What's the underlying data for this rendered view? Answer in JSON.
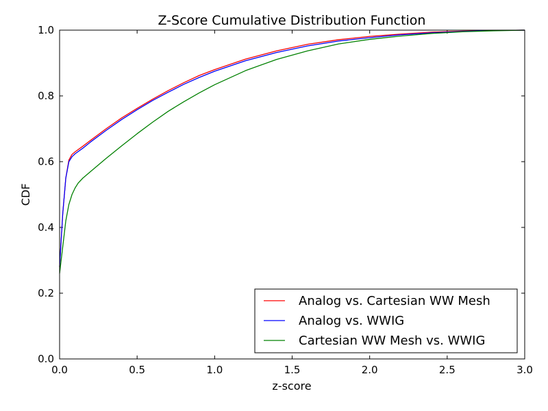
{
  "chart_data": {
    "type": "line",
    "title": "Z-Score Cumulative Distribution Function",
    "xlabel": "z-score",
    "ylabel": "CDF",
    "xlim": [
      0.0,
      3.0
    ],
    "ylim": [
      0.0,
      1.0
    ],
    "xticks": [
      "0.0",
      "0.5",
      "1.0",
      "1.5",
      "2.0",
      "2.5",
      "3.0"
    ],
    "yticks": [
      "0.0",
      "0.2",
      "0.4",
      "0.6",
      "0.8",
      "1.0"
    ],
    "grid": false,
    "legend_position": "lower-right",
    "series": [
      {
        "name": "Analog vs. Cartesian WW Mesh",
        "color": "#ff0000",
        "x": [
          0.0,
          0.02,
          0.04,
          0.06,
          0.08,
          0.1,
          0.15,
          0.2,
          0.3,
          0.4,
          0.5,
          0.6,
          0.7,
          0.8,
          0.9,
          1.0,
          1.2,
          1.4,
          1.6,
          1.8,
          2.0,
          2.2,
          2.4,
          2.6,
          2.8,
          3.0
        ],
        "y": [
          0.28,
          0.44,
          0.55,
          0.605,
          0.622,
          0.63,
          0.647,
          0.665,
          0.7,
          0.733,
          0.762,
          0.79,
          0.816,
          0.84,
          0.862,
          0.88,
          0.912,
          0.937,
          0.957,
          0.971,
          0.981,
          0.988,
          0.994,
          0.997,
          0.999,
          1.0
        ]
      },
      {
        "name": "Analog vs. WWIG",
        "color": "#0000ff",
        "x": [
          0.0,
          0.02,
          0.04,
          0.06,
          0.08,
          0.1,
          0.15,
          0.2,
          0.3,
          0.4,
          0.5,
          0.6,
          0.7,
          0.8,
          0.9,
          1.0,
          1.2,
          1.4,
          1.6,
          1.8,
          2.0,
          2.2,
          2.4,
          2.6,
          2.8,
          3.0
        ],
        "y": [
          0.28,
          0.44,
          0.55,
          0.6,
          0.615,
          0.624,
          0.641,
          0.66,
          0.695,
          0.728,
          0.758,
          0.786,
          0.811,
          0.835,
          0.856,
          0.875,
          0.907,
          0.932,
          0.952,
          0.967,
          0.977,
          0.986,
          0.992,
          0.996,
          0.999,
          1.0
        ]
      },
      {
        "name": "Cartesian WW Mesh vs. WWIG",
        "color": "#008000",
        "x": [
          0.0,
          0.02,
          0.04,
          0.06,
          0.08,
          0.1,
          0.12,
          0.15,
          0.2,
          0.3,
          0.4,
          0.5,
          0.6,
          0.7,
          0.8,
          0.9,
          1.0,
          1.2,
          1.4,
          1.6,
          1.8,
          2.0,
          2.2,
          2.4,
          2.6,
          2.8,
          3.0
        ],
        "y": [
          0.26,
          0.34,
          0.42,
          0.47,
          0.5,
          0.52,
          0.535,
          0.55,
          0.57,
          0.61,
          0.648,
          0.685,
          0.72,
          0.753,
          0.782,
          0.809,
          0.834,
          0.877,
          0.911,
          0.937,
          0.958,
          0.972,
          0.982,
          0.99,
          0.995,
          0.998,
          1.0
        ]
      }
    ]
  }
}
